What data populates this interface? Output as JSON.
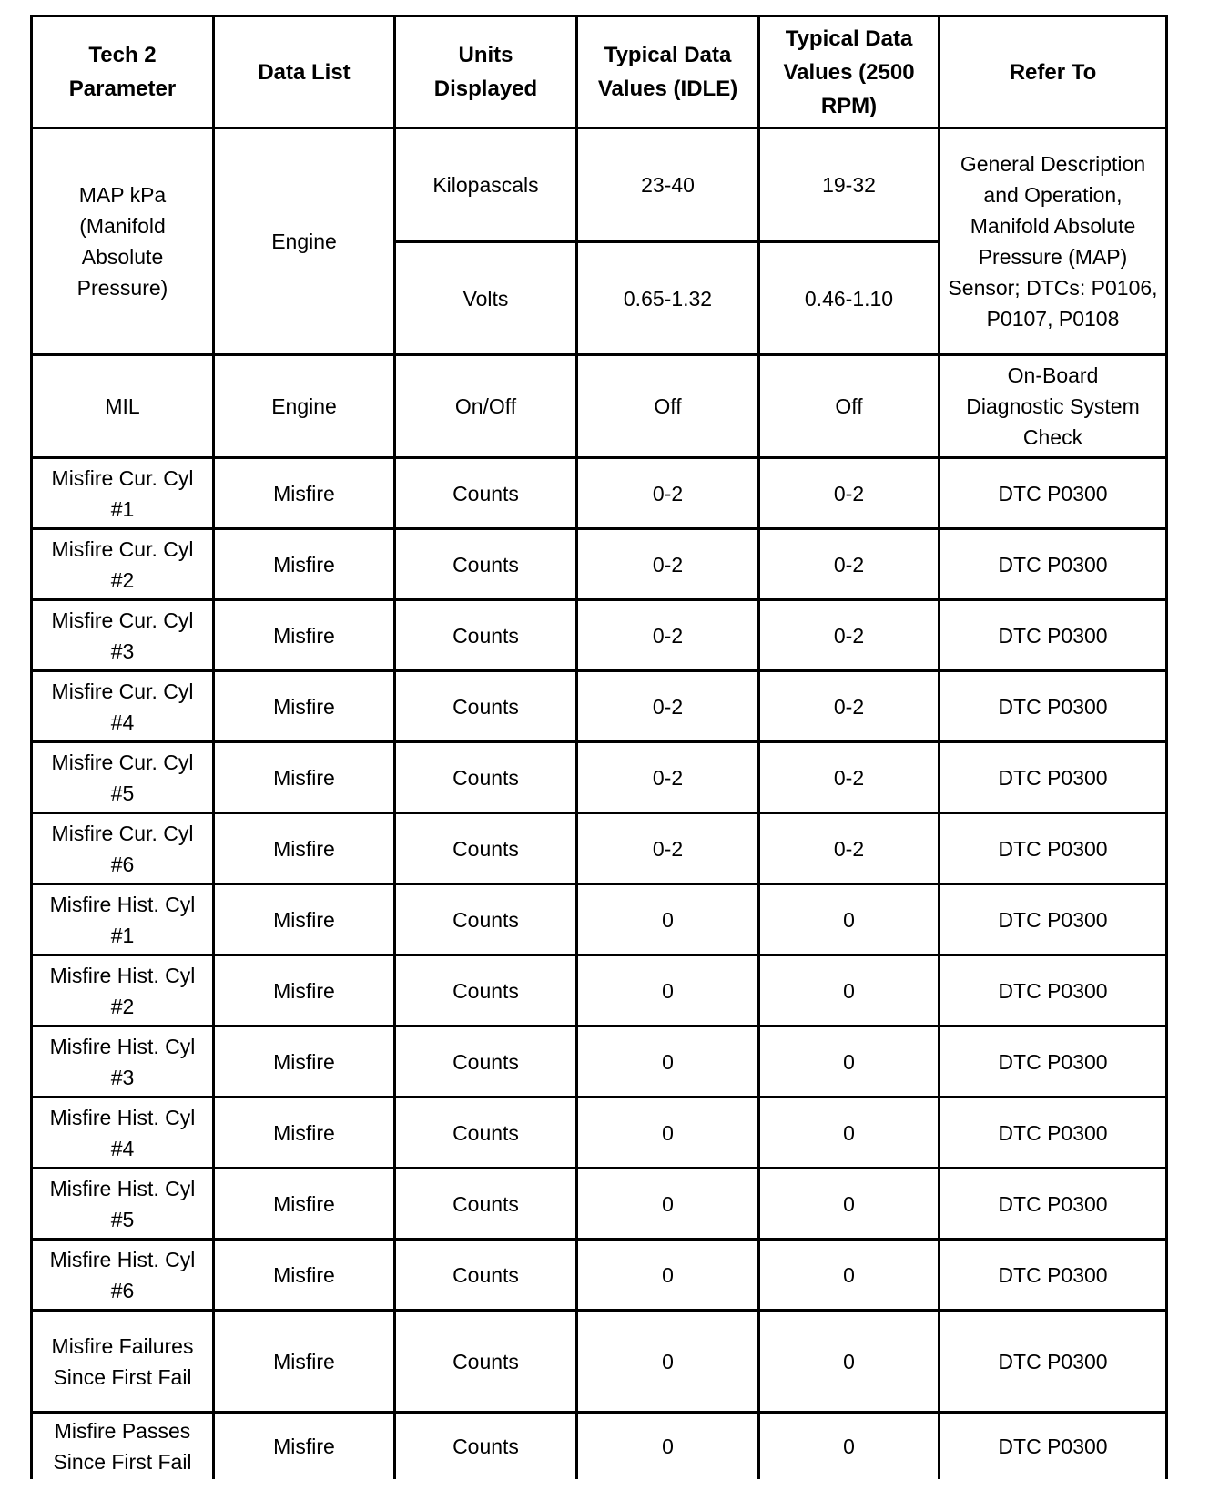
{
  "headers": [
    "Tech 2 Parameter",
    "Data List",
    "Units Displayed",
    "Typical Data Values (IDLE)",
    "Typical Data Values (2500 RPM)",
    "Refer To"
  ],
  "map_row": {
    "parameter": "MAP kPa (Manifold Absolute Pressure)",
    "data_list": "Engine",
    "sub": [
      {
        "units": "Kilopascals",
        "idle": "23-40",
        "rpm2500": "19-32"
      },
      {
        "units": "Volts",
        "idle": "0.65-1.32",
        "rpm2500": "0.46-1.10"
      }
    ],
    "refer_to": "General Description and Operation, Manifold Absolute Pressure (MAP) Sensor; DTCs: P0106, P0107, P0108"
  },
  "rows": [
    {
      "parameter": "MIL",
      "data_list": "Engine",
      "units": "On/Off",
      "idle": "Off",
      "rpm2500": "Off",
      "refer_to": "On-Board Diagnostic System Check"
    },
    {
      "parameter": "Misfire Cur. Cyl #1",
      "data_list": "Misfire",
      "units": "Counts",
      "idle": "0-2",
      "rpm2500": "0-2",
      "refer_to": "DTC P0300"
    },
    {
      "parameter": "Misfire Cur. Cyl #2",
      "data_list": "Misfire",
      "units": "Counts",
      "idle": "0-2",
      "rpm2500": "0-2",
      "refer_to": "DTC P0300"
    },
    {
      "parameter": "Misfire Cur. Cyl #3",
      "data_list": "Misfire",
      "units": "Counts",
      "idle": "0-2",
      "rpm2500": "0-2",
      "refer_to": "DTC P0300"
    },
    {
      "parameter": "Misfire Cur. Cyl #4",
      "data_list": "Misfire",
      "units": "Counts",
      "idle": "0-2",
      "rpm2500": "0-2",
      "refer_to": "DTC P0300"
    },
    {
      "parameter": "Misfire Cur. Cyl #5",
      "data_list": "Misfire",
      "units": "Counts",
      "idle": "0-2",
      "rpm2500": "0-2",
      "refer_to": "DTC P0300"
    },
    {
      "parameter": "Misfire Cur. Cyl #6",
      "data_list": "Misfire",
      "units": "Counts",
      "idle": "0-2",
      "rpm2500": "0-2",
      "refer_to": "DTC P0300"
    },
    {
      "parameter": "Misfire Hist. Cyl #1",
      "data_list": "Misfire",
      "units": "Counts",
      "idle": "0",
      "rpm2500": "0",
      "refer_to": "DTC P0300"
    },
    {
      "parameter": "Misfire Hist. Cyl #2",
      "data_list": "Misfire",
      "units": "Counts",
      "idle": "0",
      "rpm2500": "0",
      "refer_to": "DTC P0300"
    },
    {
      "parameter": "Misfire Hist. Cyl #3",
      "data_list": "Misfire",
      "units": "Counts",
      "idle": "0",
      "rpm2500": "0",
      "refer_to": "DTC P0300"
    },
    {
      "parameter": "Misfire Hist. Cyl #4",
      "data_list": "Misfire",
      "units": "Counts",
      "idle": "0",
      "rpm2500": "0",
      "refer_to": "DTC P0300"
    },
    {
      "parameter": "Misfire Hist. Cyl #5",
      "data_list": "Misfire",
      "units": "Counts",
      "idle": "0",
      "rpm2500": "0",
      "refer_to": "DTC P0300"
    },
    {
      "parameter": "Misfire Hist. Cyl #6",
      "data_list": "Misfire",
      "units": "Counts",
      "idle": "0",
      "rpm2500": "0",
      "refer_to": "DTC P0300"
    },
    {
      "parameter": "Misfire Failures Since First Fail",
      "data_list": "Misfire",
      "units": "Counts",
      "idle": "0",
      "rpm2500": "0",
      "refer_to": "DTC P0300"
    },
    {
      "parameter": "Misfire Passes Since First Fail",
      "data_list": "Misfire",
      "units": "Counts",
      "idle": "0",
      "rpm2500": "0",
      "refer_to": "DTC P0300"
    }
  ]
}
